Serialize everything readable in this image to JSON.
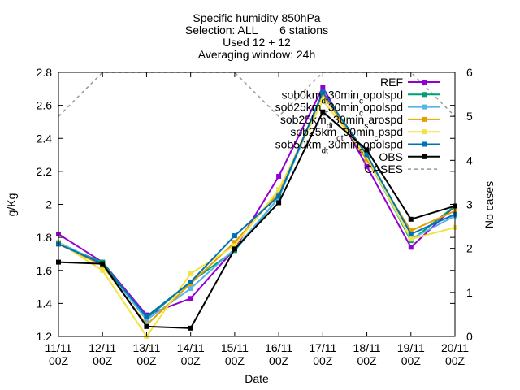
{
  "chart_data": {
    "type": "line",
    "title_lines": [
      "Specific humidity 850hPa",
      "Selection: ALL       6 stations",
      "Used 12 + 12",
      "Averaging window: 24h"
    ],
    "xlabel": "Date",
    "ylabel": "g/Kg",
    "y2label": "No cases",
    "ylim": [
      1.2,
      2.8
    ],
    "y2lim": [
      0,
      6
    ],
    "yticks": [
      "1.2",
      "1.4",
      "1.6",
      "1.8",
      "2",
      "2.2",
      "2.4",
      "2.6",
      "2.8"
    ],
    "y2ticks": [
      "0",
      "1",
      "2",
      "3",
      "4",
      "5",
      "6"
    ],
    "x_categories": [
      [
        "11/11",
        "00Z"
      ],
      [
        "12/11",
        "00Z"
      ],
      [
        "13/11",
        "00Z"
      ],
      [
        "14/11",
        "00Z"
      ],
      [
        "15/11",
        "00Z"
      ],
      [
        "16/11",
        "00Z"
      ],
      [
        "17/11",
        "00Z"
      ],
      [
        "18/11",
        "00Z"
      ],
      [
        "19/11",
        "00Z"
      ],
      [
        "20/11",
        "00Z"
      ]
    ],
    "legend_position": "top-right",
    "grid": false,
    "series": [
      {
        "name": "REF",
        "color": "#9400d3",
        "values": [
          1.82,
          1.65,
          1.33,
          1.43,
          1.73,
          2.17,
          2.71,
          2.23,
          1.74,
          1.99
        ]
      },
      {
        "name": "sob0km_dt30min_c opolspd",
        "color": "#009e73",
        "values": [
          1.76,
          1.65,
          1.31,
          1.53,
          1.72,
          2.04,
          2.68,
          2.29,
          1.78,
          1.99
        ]
      },
      {
        "name": "sob25km_dt30min_c opolspd",
        "color": "#56b4e9",
        "values": [
          1.77,
          1.64,
          1.3,
          1.49,
          1.73,
          2.04,
          2.67,
          2.28,
          1.79,
          1.93
        ]
      },
      {
        "name": "sob25km_dt30min_s arospd",
        "color": "#e69f00",
        "values": [
          1.76,
          1.63,
          1.27,
          1.52,
          1.77,
          2.07,
          2.67,
          2.27,
          1.84,
          1.96
        ]
      },
      {
        "name": "sob25km_dt90min_c pspd",
        "color": "#f0e442",
        "values": [
          1.77,
          1.6,
          1.2,
          1.58,
          1.75,
          2.09,
          2.63,
          2.29,
          1.79,
          1.86
        ]
      },
      {
        "name": "sob50km_dt30min_c opolspd",
        "color": "#0072b2",
        "values": [
          1.76,
          1.64,
          1.32,
          1.53,
          1.81,
          2.05,
          2.68,
          2.3,
          1.82,
          1.94
        ]
      },
      {
        "name": "OBS",
        "color": "#000000",
        "values": [
          1.65,
          1.64,
          1.26,
          1.25,
          1.73,
          2.01,
          2.56,
          2.33,
          1.91,
          1.99
        ]
      }
    ],
    "cases": {
      "name": "CASES",
      "color": "#999999",
      "axis": "y2",
      "values": [
        5,
        6,
        6,
        6,
        6,
        5,
        6,
        6,
        6,
        5
      ]
    }
  }
}
